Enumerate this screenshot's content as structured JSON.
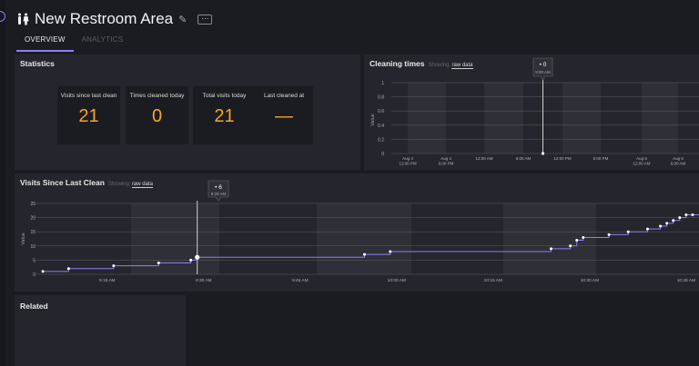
{
  "header": {
    "title": "New Restroom Area"
  },
  "tabs": [
    {
      "label": "OVERVIEW",
      "active": true
    },
    {
      "label": "ANALYTICS",
      "active": false
    }
  ],
  "statistics": {
    "title": "Statistics",
    "cards": [
      {
        "label": "Visits since last clean",
        "value": "21"
      },
      {
        "label": "Times cleaned today",
        "value": "0"
      },
      {
        "label": "Total visits today",
        "value": "21"
      },
      {
        "label": "Last cleaned at",
        "value": "—"
      }
    ]
  },
  "cleaning": {
    "title": "Cleaning times",
    "showing": "Showing",
    "raw": "raw data",
    "ylabel": "Value",
    "yticks": [
      "1",
      "0.8",
      "0.6",
      "0.4",
      "0.2",
      "0"
    ],
    "xticks": [
      [
        "Aug 4",
        "12:00 PM"
      ],
      [
        "Aug 4",
        "6:00 PM"
      ],
      [
        "12:00 AM"
      ],
      [
        "6:00 AM"
      ],
      [
        "12:00 PM"
      ],
      [
        "6:00 PM"
      ],
      [
        "Aug 6",
        "12:00 AM"
      ],
      [
        "Aug 6",
        "6:00 AM"
      ]
    ],
    "tooltip": {
      "value": "• 0",
      "time": "9:00 AM"
    }
  },
  "visits": {
    "title": "Visits Since Last Clean",
    "showing": "Showing",
    "raw": "raw data",
    "ylabel": "Value",
    "yticks": [
      "25",
      "20",
      "15",
      "10",
      "5",
      "0"
    ],
    "xticks": [
      "9:15 AM",
      "9:30 AM",
      "9:45 AM",
      "10:00 AM",
      "10:15 AM",
      "10:30 AM",
      "10:45 AM"
    ],
    "tooltip": {
      "value": "• 6",
      "time": "9:29 AM"
    }
  },
  "related": {
    "title": "Related"
  },
  "colors": {
    "accent": "#8b7ff5",
    "value": "#f5a623",
    "panel": "#25262d",
    "background": "#1b1c22"
  },
  "chart_data": [
    {
      "type": "line",
      "title": "Cleaning times",
      "ylabel": "Value",
      "ylim": [
        0,
        1
      ],
      "x": [
        "Aug 5 9:00 AM"
      ],
      "series": [
        {
          "values": [
            0
          ]
        }
      ],
      "grid": true
    },
    {
      "type": "line",
      "title": "Visits Since Last Clean",
      "ylabel": "Value",
      "ylim": [
        0,
        25
      ],
      "x": [
        "9:05 AM",
        "9:09 AM",
        "9:16 AM",
        "9:23 AM",
        "9:28 AM",
        "9:29 AM",
        "9:55 AM",
        "9:59 AM",
        "10:24 AM",
        "10:27 AM",
        "10:28 AM",
        "10:29 AM",
        "10:33 AM",
        "10:36 AM",
        "10:39 AM",
        "10:41 AM",
        "10:42 AM",
        "10:43 AM",
        "10:44 AM",
        "10:45 AM",
        "10:46 AM"
      ],
      "series": [
        {
          "values": [
            1,
            2,
            3,
            4,
            5,
            6,
            7,
            8,
            9,
            10,
            12,
            13,
            14,
            15,
            16,
            17,
            18,
            19,
            20,
            21,
            21
          ]
        }
      ],
      "grid": true
    }
  ]
}
